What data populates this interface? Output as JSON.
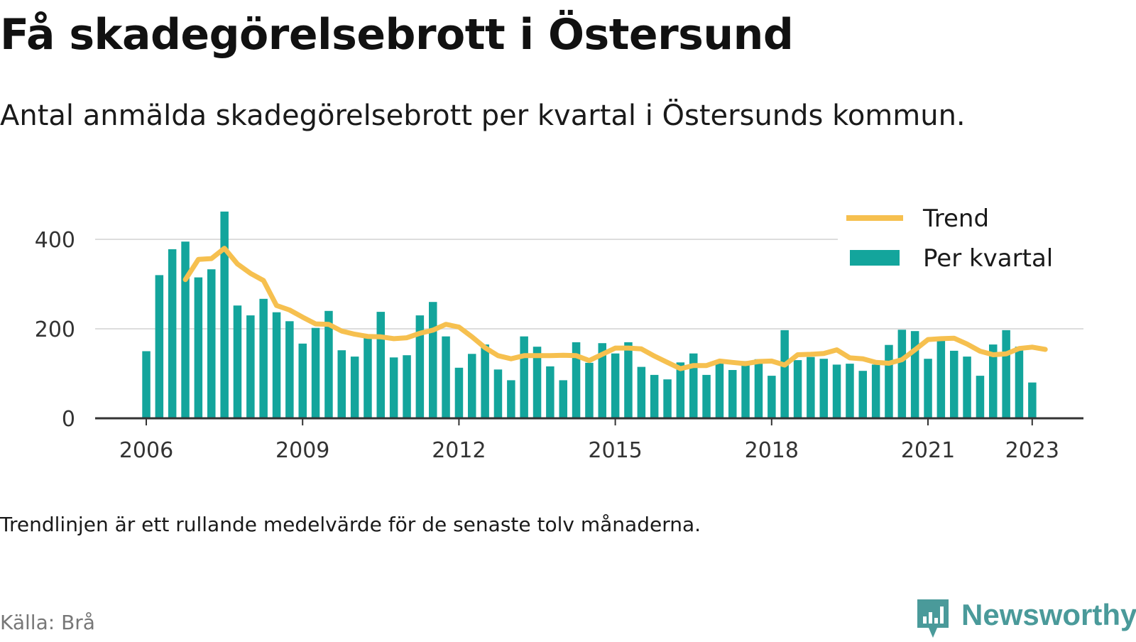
{
  "title": "Få skadegörelsebrott i Östersund",
  "subtitle": "Antal anmälda skadegörelsebrott per kvartal i Östersunds kommun.",
  "note": "Trendlinjen är ett rullande medelvärde för de senaste tolv månaderna.",
  "source": "Källa: Brå",
  "brand": {
    "name": "Newsworthy",
    "icon": "newsworthy-chart-pin-icon"
  },
  "colors": {
    "bars": "#13a59c",
    "trend": "#f6c04f",
    "grid": "#dddddd",
    "axis": "#333333"
  },
  "chart_data": {
    "type": "bar",
    "x_start": 2006,
    "step": 0.25,
    "xticks": [
      2006,
      2009,
      2012,
      2015,
      2018,
      2021,
      2023
    ],
    "yticks": [
      0,
      200,
      400
    ],
    "ylim": [
      0,
      480
    ],
    "grid": true,
    "legend_position": "top-right",
    "series": [
      {
        "name": "Per kvartal",
        "kind": "bar",
        "values": [
          150,
          320,
          378,
          395,
          315,
          333,
          462,
          252,
          230,
          267,
          237,
          217,
          167,
          202,
          240,
          152,
          138,
          180,
          238,
          136,
          141,
          230,
          260,
          183,
          113,
          144,
          165,
          109,
          85,
          183,
          160,
          116,
          85,
          170,
          124,
          168,
          145,
          170,
          115,
          97,
          87,
          125,
          145,
          97,
          125,
          108,
          128,
          132,
          95,
          197,
          130,
          137,
          133,
          120,
          122,
          106,
          120,
          164,
          198,
          195,
          133,
          175,
          151,
          138,
          95,
          165,
          197,
          160,
          80
        ]
      },
      {
        "name": "Trend",
        "kind": "line",
        "start_index": 3,
        "values": [
          310,
          355,
          357,
          380,
          345,
          324,
          308,
          252,
          242,
          226,
          211,
          210,
          195,
          188,
          183,
          182,
          178,
          180,
          190,
          197,
          210,
          204,
          182,
          158,
          140,
          133,
          140,
          140,
          140,
          141,
          140,
          129,
          143,
          157,
          157,
          155,
          139,
          125,
          111,
          118,
          118,
          128,
          125,
          122,
          127,
          128,
          119,
          142,
          143,
          145,
          153,
          135,
          133,
          125,
          123,
          131,
          153,
          176,
          178,
          179,
          166,
          150,
          142,
          144,
          156,
          159,
          154
        ]
      }
    ]
  }
}
